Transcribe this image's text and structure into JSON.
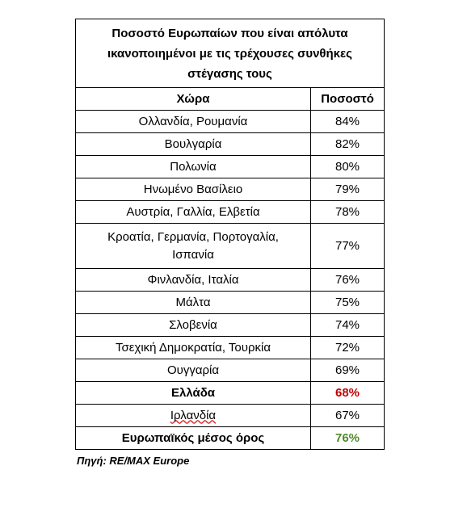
{
  "table": {
    "title": "Ποσοστό Ευρωπαίων που είναι απόλυτα ικανοποιημένοι με τις τρέχουσες συνθήκες στέγασης τους",
    "header": [
      "Χώρα",
      "Ποσοστό"
    ],
    "rows": [
      [
        "Ολλανδία, Ρουμανία",
        "84%"
      ],
      [
        "Βουλγαρία",
        "82%"
      ],
      [
        "Πολωνία",
        "80%"
      ],
      [
        "Ηνωμένο Βασίλειο",
        "79%"
      ],
      [
        "Αυστρία, Γαλλία, Ελβετία",
        "78%"
      ],
      [
        "Κροατία, Γερμανία, Πορτογαλία, Ισπανία",
        "77%"
      ],
      [
        "Φινλανδία, Ιταλία",
        "76%"
      ],
      [
        "Μάλτα",
        "75%"
      ],
      [
        "Σλοβενία",
        "74%"
      ],
      [
        "Τσεχική Δημοκρατία, Τουρκία",
        "72%"
      ],
      [
        "Ουγγαρία",
        "69%"
      ],
      [
        "Ελλάδα",
        "68%"
      ],
      [
        "Ιρλανδία",
        "67%"
      ],
      [
        "Ευρωπαϊκός μέσος όρος",
        "76%"
      ]
    ]
  },
  "source": "Πηγή: RE/MAX Europe"
}
